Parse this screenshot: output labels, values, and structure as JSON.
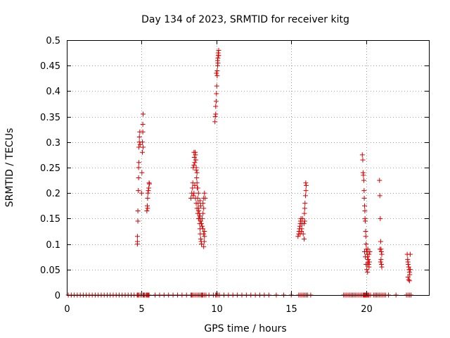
{
  "chart_data": {
    "type": "scatter",
    "title": "Day 134 of 2023, SRMTID for receiver kitg",
    "xlabel": "GPS time / hours",
    "ylabel": "SRMTID / TECUs",
    "xlim": [
      0,
      24.2
    ],
    "ylim": [
      0,
      0.5
    ],
    "xticks": [
      0,
      5,
      10,
      15,
      20
    ],
    "xtick_labels": [
      "0",
      "5",
      "10",
      "15",
      "20"
    ],
    "yticks": [
      0,
      0.05,
      0.1,
      0.15,
      0.2,
      0.25,
      0.3,
      0.35,
      0.4,
      0.45,
      0.5
    ],
    "ytick_labels": [
      "0",
      "0.05",
      "0.1",
      "0.15",
      "0.2",
      "0.25",
      "0.3",
      "0.35",
      "0.4",
      "0.45",
      "0.5"
    ],
    "grid": true,
    "marker": "+",
    "color": "#dd0000",
    "series": [
      {
        "name": "SRMTID",
        "points": [
          [
            4.72,
            0.1
          ],
          [
            4.72,
            0.105
          ],
          [
            4.72,
            0.115
          ],
          [
            4.75,
            0.145
          ],
          [
            4.75,
            0.165
          ],
          [
            4.78,
            0.205
          ],
          [
            4.8,
            0.23
          ],
          [
            4.8,
            0.25
          ],
          [
            4.82,
            0.26
          ],
          [
            4.82,
            0.29
          ],
          [
            4.85,
            0.3
          ],
          [
            4.85,
            0.31
          ],
          [
            4.88,
            0.32
          ],
          [
            4.9,
            0.295
          ],
          [
            5.0,
            0.2
          ],
          [
            5.02,
            0.24
          ],
          [
            5.05,
            0.28
          ],
          [
            5.05,
            0.3
          ],
          [
            5.08,
            0.32
          ],
          [
            5.08,
            0.335
          ],
          [
            5.1,
            0.355
          ],
          [
            5.1,
            0.29
          ],
          [
            5.35,
            0.165
          ],
          [
            5.38,
            0.175
          ],
          [
            5.4,
            0.19
          ],
          [
            5.42,
            0.2
          ],
          [
            5.45,
            0.205
          ],
          [
            5.48,
            0.21
          ],
          [
            5.5,
            0.22
          ],
          [
            5.52,
            0.218
          ],
          [
            5.4,
            0.17
          ],
          [
            8.3,
            0.19
          ],
          [
            8.35,
            0.2
          ],
          [
            8.4,
            0.21
          ],
          [
            8.42,
            0.22
          ],
          [
            8.45,
            0.25
          ],
          [
            8.5,
            0.255
          ],
          [
            8.5,
            0.28
          ],
          [
            8.52,
            0.27
          ],
          [
            8.55,
            0.26
          ],
          [
            8.58,
            0.28
          ],
          [
            8.6,
            0.275
          ],
          [
            8.62,
            0.265
          ],
          [
            8.65,
            0.245
          ],
          [
            8.68,
            0.23
          ],
          [
            8.7,
            0.22
          ],
          [
            8.72,
            0.21
          ],
          [
            8.75,
            0.19
          ],
          [
            8.78,
            0.18
          ],
          [
            8.8,
            0.17
          ],
          [
            8.82,
            0.165
          ],
          [
            8.85,
            0.15
          ],
          [
            8.88,
            0.14
          ],
          [
            8.9,
            0.13
          ],
          [
            8.92,
            0.12
          ],
          [
            8.95,
            0.11
          ],
          [
            8.98,
            0.105
          ],
          [
            9.0,
            0.1
          ],
          [
            8.6,
            0.19
          ],
          [
            8.65,
            0.18
          ],
          [
            8.7,
            0.17
          ],
          [
            8.75,
            0.16
          ],
          [
            8.8,
            0.15
          ],
          [
            8.85,
            0.16
          ],
          [
            8.9,
            0.155
          ],
          [
            8.95,
            0.145
          ],
          [
            9.0,
            0.14
          ],
          [
            9.05,
            0.135
          ],
          [
            9.1,
            0.13
          ],
          [
            9.15,
            0.12
          ],
          [
            9.2,
            0.115
          ],
          [
            9.1,
            0.18
          ],
          [
            9.15,
            0.19
          ],
          [
            9.2,
            0.2
          ],
          [
            9.05,
            0.15
          ],
          [
            9.1,
            0.16
          ],
          [
            9.15,
            0.17
          ],
          [
            8.75,
            0.21
          ],
          [
            8.8,
            0.2
          ],
          [
            8.7,
            0.24
          ],
          [
            8.65,
            0.25
          ],
          [
            8.55,
            0.215
          ],
          [
            8.5,
            0.2
          ],
          [
            8.45,
            0.195
          ],
          [
            9.25,
            0.19
          ],
          [
            9.2,
            0.125
          ],
          [
            9.18,
            0.105
          ],
          [
            9.15,
            0.095
          ],
          [
            8.9,
            0.185
          ],
          [
            8.95,
            0.175
          ],
          [
            9.9,
            0.34
          ],
          [
            9.92,
            0.35
          ],
          [
            9.95,
            0.37
          ],
          [
            9.98,
            0.38
          ],
          [
            10.0,
            0.395
          ],
          [
            10.02,
            0.41
          ],
          [
            10.05,
            0.43
          ],
          [
            10.05,
            0.44
          ],
          [
            10.08,
            0.45
          ],
          [
            10.08,
            0.46
          ],
          [
            10.1,
            0.465
          ],
          [
            10.12,
            0.47
          ],
          [
            10.12,
            0.475
          ],
          [
            10.15,
            0.48
          ],
          [
            10.15,
            0.47
          ],
          [
            10.1,
            0.455
          ],
          [
            9.95,
            0.355
          ],
          [
            10.0,
            0.435
          ],
          [
            15.45,
            0.115
          ],
          [
            15.5,
            0.12
          ],
          [
            15.52,
            0.125
          ],
          [
            15.55,
            0.13
          ],
          [
            15.58,
            0.135
          ],
          [
            15.6,
            0.14
          ],
          [
            15.62,
            0.145
          ],
          [
            15.65,
            0.15
          ],
          [
            15.68,
            0.125
          ],
          [
            15.7,
            0.13
          ],
          [
            15.72,
            0.14
          ],
          [
            15.75,
            0.15
          ],
          [
            15.8,
            0.12
          ],
          [
            15.85,
            0.14
          ],
          [
            15.88,
            0.16
          ],
          [
            15.9,
            0.17
          ],
          [
            15.92,
            0.18
          ],
          [
            15.95,
            0.195
          ],
          [
            15.98,
            0.205
          ],
          [
            16.0,
            0.215
          ],
          [
            15.97,
            0.22
          ],
          [
            15.9,
            0.145
          ],
          [
            15.86,
            0.11
          ],
          [
            15.6,
            0.12
          ],
          [
            19.75,
            0.275
          ],
          [
            19.78,
            0.265
          ],
          [
            19.8,
            0.24
          ],
          [
            19.82,
            0.235
          ],
          [
            19.85,
            0.225
          ],
          [
            19.87,
            0.205
          ],
          [
            19.88,
            0.19
          ],
          [
            19.9,
            0.175
          ],
          [
            19.92,
            0.165
          ],
          [
            19.93,
            0.15
          ],
          [
            19.95,
            0.145
          ],
          [
            19.97,
            0.125
          ],
          [
            19.98,
            0.115
          ],
          [
            20.0,
            0.1
          ],
          [
            20.02,
            0.09
          ],
          [
            20.05,
            0.085
          ],
          [
            20.08,
            0.08
          ],
          [
            20.1,
            0.075
          ],
          [
            20.12,
            0.07
          ],
          [
            20.15,
            0.065
          ],
          [
            20.18,
            0.06
          ],
          [
            20.2,
            0.055
          ],
          [
            20.05,
            0.05
          ],
          [
            20.1,
            0.045
          ],
          [
            20.15,
            0.07
          ],
          [
            20.2,
            0.08
          ],
          [
            20.25,
            0.085
          ],
          [
            20.0,
            0.06
          ],
          [
            19.95,
            0.075
          ],
          [
            19.9,
            0.085
          ],
          [
            20.22,
            0.065
          ],
          [
            20.12,
            0.09
          ],
          [
            20.08,
            0.06
          ],
          [
            20.9,
            0.225
          ],
          [
            20.92,
            0.195
          ],
          [
            20.95,
            0.15
          ],
          [
            20.98,
            0.105
          ],
          [
            21.0,
            0.09
          ],
          [
            21.02,
            0.085
          ],
          [
            21.05,
            0.08
          ],
          [
            21.0,
            0.07
          ],
          [
            20.97,
            0.065
          ],
          [
            21.03,
            0.06
          ],
          [
            21.05,
            0.055
          ],
          [
            20.93,
            0.09
          ],
          [
            22.75,
            0.08
          ],
          [
            22.78,
            0.07
          ],
          [
            22.8,
            0.065
          ],
          [
            22.82,
            0.06
          ],
          [
            22.85,
            0.055
          ],
          [
            22.88,
            0.05
          ],
          [
            22.9,
            0.045
          ],
          [
            22.92,
            0.04
          ],
          [
            22.8,
            0.035
          ],
          [
            22.85,
            0.03
          ],
          [
            22.9,
            0.028
          ],
          [
            22.95,
            0.05
          ],
          [
            22.95,
            0.08
          ]
        ],
        "zero_points": [
          0.1,
          0.3,
          0.5,
          0.7,
          0.9,
          1.1,
          1.3,
          1.5,
          1.7,
          1.9,
          2.1,
          2.3,
          2.5,
          2.7,
          2.9,
          3.1,
          3.3,
          3.5,
          3.7,
          3.9,
          4.1,
          4.3,
          4.5,
          4.7,
          4.75,
          4.8,
          4.9,
          5.0,
          5.1,
          5.15,
          5.2,
          5.3,
          5.35,
          5.4,
          5.45,
          5.5,
          5.9,
          6.2,
          6.5,
          6.8,
          7.1,
          7.4,
          7.7,
          8.0,
          8.3,
          8.35,
          8.4,
          8.5,
          8.6,
          8.7,
          8.8,
          8.9,
          9.0,
          9.05,
          9.1,
          9.2,
          9.3,
          9.5,
          9.8,
          9.95,
          10.0,
          10.1,
          10.2,
          10.5,
          10.8,
          11.1,
          11.4,
          11.7,
          12.0,
          12.3,
          12.6,
          12.9,
          13.2,
          13.5,
          14.0,
          14.5,
          15.0,
          15.5,
          15.6,
          15.7,
          15.8,
          15.9,
          16.0,
          16.1,
          16.3,
          18.5,
          18.6,
          18.7,
          18.8,
          18.9,
          19.0,
          19.1,
          19.2,
          19.3,
          19.4,
          19.5,
          19.6,
          19.7,
          19.8,
          19.85,
          19.9,
          19.95,
          20.0,
          20.05,
          20.1,
          20.15,
          20.2,
          20.3,
          20.5,
          20.6,
          20.7,
          20.8,
          20.9,
          21.0,
          21.1,
          21.2,
          21.3,
          21.5,
          22.0,
          22.7,
          22.8,
          22.9,
          23.0
        ]
      }
    ]
  }
}
